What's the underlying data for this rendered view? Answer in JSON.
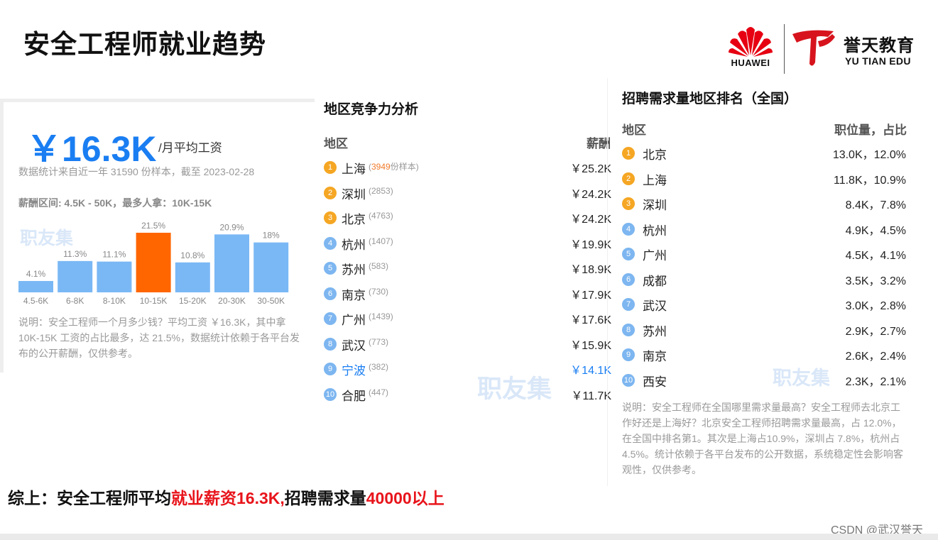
{
  "slide_title": "安全工程师就业趋势",
  "logos": {
    "huawei_text": "HUAWEI",
    "yutian_cn": "誉天教育",
    "yutian_en": "YU TIAN EDU"
  },
  "salary": {
    "big_value": "￥16.3K",
    "unit": "/月平均工资",
    "source_text": "数据统计来自近一年 31590 份样本，截至 2023-02-28",
    "range_text": "薪酬区间: 4.5K - 50K，最多人拿：10K-15K",
    "watermark": "职友集",
    "note": "说明：安全工程师一个月多少钱？平均工资 ￥16.3K，其中拿 10K-15K 工资的占比最多，达 21.5%，数据统计依赖于各平台发布的公开薪酬，仅供参考。"
  },
  "chart_data": {
    "type": "bar",
    "categories": [
      "4.5-6K",
      "6-8K",
      "8-10K",
      "10-15K",
      "15-20K",
      "20-30K",
      "30-50K"
    ],
    "values": [
      4.1,
      11.3,
      11.1,
      21.5,
      10.8,
      20.9,
      18.0
    ],
    "value_labels": [
      "4.1%",
      "11.3%",
      "11.1%",
      "21.5%",
      "10.8%",
      "20.9%",
      "18%"
    ],
    "highlight_index": 3,
    "colors": {
      "bar": "#7ab8f5",
      "highlight": "#ff6600"
    },
    "grid": false,
    "title": "",
    "xlabel": "",
    "ylabel": ""
  },
  "region": {
    "title": "地区竞争力分析",
    "head_left": "地区",
    "head_right": "薪酬",
    "rows": [
      {
        "rank": "1",
        "city": "上海",
        "sample_prefix": "(",
        "sample_num": "3949",
        "sample_suffix": "份样本)",
        "pay": "￥25.2K"
      },
      {
        "rank": "2",
        "city": "深圳",
        "sample_prefix": "(2853)",
        "sample_num": "",
        "sample_suffix": "",
        "pay": "￥24.2K"
      },
      {
        "rank": "3",
        "city": "北京",
        "sample_prefix": "(4763)",
        "sample_num": "",
        "sample_suffix": "",
        "pay": "￥24.2K"
      },
      {
        "rank": "4",
        "city": "杭州",
        "sample_prefix": "(1407)",
        "sample_num": "",
        "sample_suffix": "",
        "pay": "￥19.9K"
      },
      {
        "rank": "5",
        "city": "苏州",
        "sample_prefix": "(583)",
        "sample_num": "",
        "sample_suffix": "",
        "pay": "￥18.9K"
      },
      {
        "rank": "6",
        "city": "南京",
        "sample_prefix": "(730)",
        "sample_num": "",
        "sample_suffix": "",
        "pay": "￥17.9K"
      },
      {
        "rank": "7",
        "city": "广州",
        "sample_prefix": "(1439)",
        "sample_num": "",
        "sample_suffix": "",
        "pay": "￥17.6K"
      },
      {
        "rank": "8",
        "city": "武汉",
        "sample_prefix": "(773)",
        "sample_num": "",
        "sample_suffix": "",
        "pay": "￥15.9K"
      },
      {
        "rank": "9",
        "city": "宁波",
        "sample_prefix": "(382)",
        "sample_num": "",
        "sample_suffix": "",
        "pay": "￥14.1K"
      },
      {
        "rank": "10",
        "city": "合肥",
        "sample_prefix": "(447)",
        "sample_num": "",
        "sample_suffix": "",
        "pay": "￥11.7K"
      }
    ]
  },
  "demand": {
    "title": "招聘需求量地区排名（全国）",
    "head_left": "地区",
    "head_right": "职位量，占比",
    "rows": [
      {
        "rank": "1",
        "city": "北京",
        "value": "13.0K，12.0%"
      },
      {
        "rank": "2",
        "city": "上海",
        "value": "11.8K，10.9%"
      },
      {
        "rank": "3",
        "city": "深圳",
        "value": "8.4K，7.8%"
      },
      {
        "rank": "4",
        "city": "杭州",
        "value": "4.9K，4.5%"
      },
      {
        "rank": "5",
        "city": "广州",
        "value": "4.5K，4.1%"
      },
      {
        "rank": "6",
        "city": "成都",
        "value": "3.5K，3.2%"
      },
      {
        "rank": "7",
        "city": "武汉",
        "value": "3.0K，2.8%"
      },
      {
        "rank": "8",
        "city": "苏州",
        "value": "2.9K，2.7%"
      },
      {
        "rank": "9",
        "city": "南京",
        "value": "2.6K，2.4%"
      },
      {
        "rank": "10",
        "city": "西安",
        "value": "2.3K，2.1%"
      }
    ],
    "note": "说明：安全工程师在全国哪里需求量最高？安全工程师去北京工作好还是上海好？北京安全工程师招聘需求量最高，占 12.0%，在全国中排名第1。其次是上海占10.9%，深圳占 7.8%，杭州占4.5%。统计依赖于各平台发布的公开数据，系统稳定性会影响客观性，仅供参考。"
  },
  "summary": {
    "part1": "综上：安全工程师平均",
    "part2": "就业薪资16.3K,",
    "part3": "招聘需求量",
    "part4": "40000以上"
  },
  "credit": "CSDN @武汉誉天"
}
